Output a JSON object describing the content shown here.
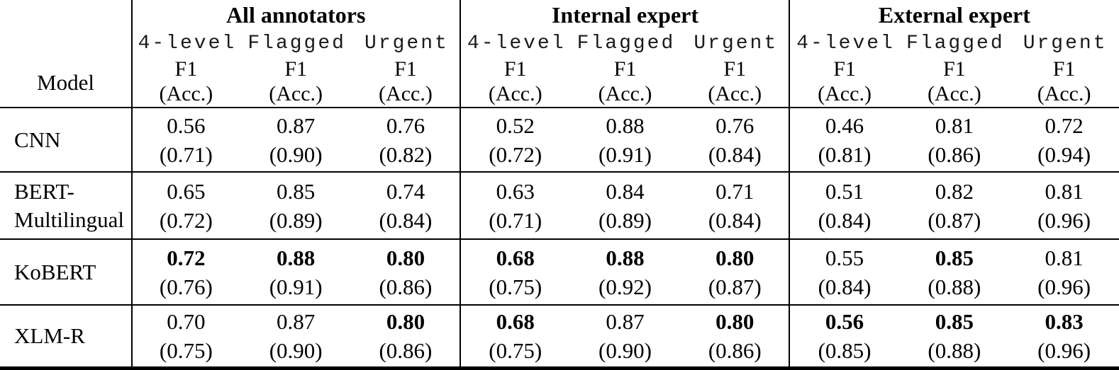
{
  "table": {
    "model_column_header": "Model",
    "groups": [
      {
        "title": "All annotators"
      },
      {
        "title": "Internal expert"
      },
      {
        "title": "External expert"
      }
    ],
    "subcolumn_labels": [
      "4-level",
      "Flagged",
      "Urgent"
    ],
    "metric_label": "F1",
    "metric_sub_label": "(Acc.)",
    "rows": [
      {
        "model": "CNN",
        "cells": [
          {
            "f1": "0.56",
            "acc": "(0.71)",
            "bold": false
          },
          {
            "f1": "0.87",
            "acc": "(0.90)",
            "bold": false
          },
          {
            "f1": "0.76",
            "acc": "(0.82)",
            "bold": false
          },
          {
            "f1": "0.52",
            "acc": "(0.72)",
            "bold": false
          },
          {
            "f1": "0.88",
            "acc": "(0.91)",
            "bold": false
          },
          {
            "f1": "0.76",
            "acc": "(0.84)",
            "bold": false
          },
          {
            "f1": "0.46",
            "acc": "(0.81)",
            "bold": false
          },
          {
            "f1": "0.81",
            "acc": "(0.86)",
            "bold": false
          },
          {
            "f1": "0.72",
            "acc": "(0.94)",
            "bold": false
          }
        ]
      },
      {
        "model": "BERT-\nMultilingual",
        "cells": [
          {
            "f1": "0.65",
            "acc": "(0.72)",
            "bold": false
          },
          {
            "f1": "0.85",
            "acc": "(0.89)",
            "bold": false
          },
          {
            "f1": "0.74",
            "acc": "(0.84)",
            "bold": false
          },
          {
            "f1": "0.63",
            "acc": "(0.71)",
            "bold": false
          },
          {
            "f1": "0.84",
            "acc": "(0.89)",
            "bold": false
          },
          {
            "f1": "0.71",
            "acc": "(0.84)",
            "bold": false
          },
          {
            "f1": "0.51",
            "acc": "(0.84)",
            "bold": false
          },
          {
            "f1": "0.82",
            "acc": "(0.87)",
            "bold": false
          },
          {
            "f1": "0.81",
            "acc": "(0.96)",
            "bold": false
          }
        ]
      },
      {
        "model": "KoBERT",
        "cells": [
          {
            "f1": "0.72",
            "acc": "(0.76)",
            "bold": true
          },
          {
            "f1": "0.88",
            "acc": "(0.91)",
            "bold": true
          },
          {
            "f1": "0.80",
            "acc": "(0.86)",
            "bold": true
          },
          {
            "f1": "0.68",
            "acc": "(0.75)",
            "bold": true
          },
          {
            "f1": "0.88",
            "acc": "(0.92)",
            "bold": true
          },
          {
            "f1": "0.80",
            "acc": "(0.87)",
            "bold": true
          },
          {
            "f1": "0.55",
            "acc": "(0.84)",
            "bold": false
          },
          {
            "f1": "0.85",
            "acc": "(0.88)",
            "bold": true
          },
          {
            "f1": "0.81",
            "acc": "(0.96)",
            "bold": false
          }
        ]
      },
      {
        "model": "XLM-R",
        "cells": [
          {
            "f1": "0.70",
            "acc": "(0.75)",
            "bold": false
          },
          {
            "f1": "0.87",
            "acc": "(0.90)",
            "bold": false
          },
          {
            "f1": "0.80",
            "acc": "(0.86)",
            "bold": true
          },
          {
            "f1": "0.68",
            "acc": "(0.75)",
            "bold": true
          },
          {
            "f1": "0.87",
            "acc": "(0.90)",
            "bold": false
          },
          {
            "f1": "0.80",
            "acc": "(0.86)",
            "bold": true
          },
          {
            "f1": "0.56",
            "acc": "(0.85)",
            "bold": true
          },
          {
            "f1": "0.85",
            "acc": "(0.88)",
            "bold": true
          },
          {
            "f1": "0.83",
            "acc": "(0.96)",
            "bold": true
          }
        ]
      }
    ]
  }
}
